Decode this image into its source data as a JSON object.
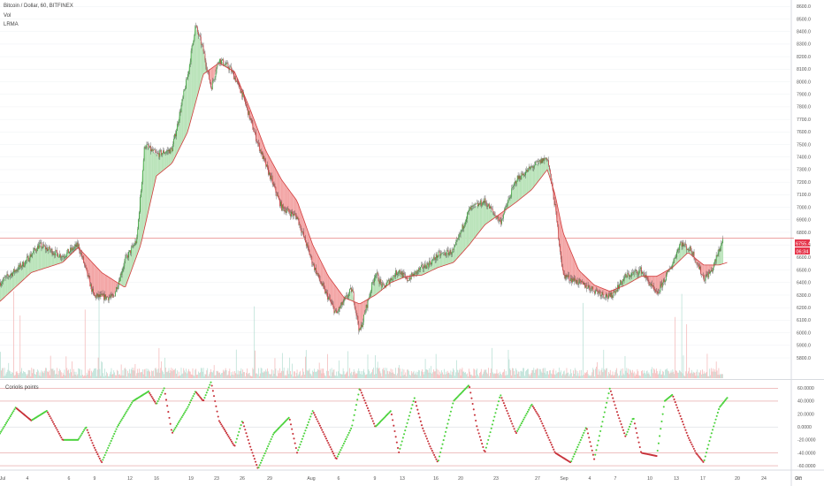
{
  "header": {
    "title": "Bitcoin / Dollar, 60, BITFINEX",
    "indicator_1": "Vol",
    "indicator_2": "LRMA"
  },
  "price_badges": {
    "last": "6755.4",
    "sub": "06:34"
  },
  "colors": {
    "bull": "#2e9e2e",
    "bear": "#c83a3a",
    "fill_bull": "#b9e3b9",
    "fill_bear": "#f3a5a5",
    "ma_line": "#d23c3c",
    "price_line": "#e06a6a",
    "badge_bg": "#e5344a",
    "grid": "#eef0f3",
    "axis_text": "#555555",
    "osc_green": "#4bd23c",
    "osc_red": "#c8323a"
  },
  "chart_data": [
    {
      "type": "candlestick",
      "title": "Bitcoin / Dollar, 60, BITFINEX",
      "indicators": [
        "Vol",
        "LRMA"
      ],
      "ylim": [
        5700,
        8650
      ],
      "y_ticks": [
        "8600.0",
        "8500.0",
        "8400.0",
        "8300.0",
        "8200.0",
        "8100.0",
        "8000.0",
        "7900.0",
        "7800.0",
        "7700.0",
        "7600.0",
        "7500.0",
        "7400.0",
        "7300.0",
        "7200.0",
        "7100.0",
        "7000.0",
        "6900.0",
        "6800.0",
        "6700.0",
        "6600.0",
        "6500.0",
        "6400.0",
        "6300.0",
        "6200.0",
        "6100.0",
        "6000.0",
        "5900.0",
        "5800.0"
      ],
      "x_ticks": [
        "Jul",
        "4",
        "6",
        "9",
        "12",
        "16",
        "19",
        "23",
        "26",
        "29",
        "Aug",
        "6",
        "9",
        "13",
        "16",
        "20",
        "23",
        "27",
        "Sep",
        "4",
        "7",
        "10",
        "13",
        "17",
        "20",
        "24",
        "27",
        "Oct"
      ],
      "last_price": 6755.4,
      "price_path": [
        {
          "t": 0,
          "p": 6400
        },
        {
          "t": 3,
          "p": 6550
        },
        {
          "t": 5,
          "p": 6700
        },
        {
          "t": 8,
          "p": 6610
        },
        {
          "t": 10,
          "p": 6700
        },
        {
          "t": 12,
          "p": 6290
        },
        {
          "t": 14.5,
          "p": 6280
        },
        {
          "t": 16,
          "p": 6580
        },
        {
          "t": 17.5,
          "p": 6740
        },
        {
          "t": 18.5,
          "p": 7500
        },
        {
          "t": 20,
          "p": 7420
        },
        {
          "t": 22,
          "p": 7460
        },
        {
          "t": 24,
          "p": 8050
        },
        {
          "t": 25,
          "p": 8450
        },
        {
          "t": 26,
          "p": 8250
        },
        {
          "t": 27,
          "p": 7950
        },
        {
          "t": 28,
          "p": 8180
        },
        {
          "t": 29.5,
          "p": 8100
        },
        {
          "t": 31,
          "p": 7900
        },
        {
          "t": 33,
          "p": 7500
        },
        {
          "t": 36,
          "p": 7000
        },
        {
          "t": 38,
          "p": 6920
        },
        {
          "t": 40,
          "p": 6550
        },
        {
          "t": 41,
          "p": 6400
        },
        {
          "t": 43,
          "p": 6150
        },
        {
          "t": 45,
          "p": 6350
        },
        {
          "t": 46,
          "p": 6000
        },
        {
          "t": 48,
          "p": 6480
        },
        {
          "t": 49,
          "p": 6360
        },
        {
          "t": 51,
          "p": 6500
        },
        {
          "t": 52,
          "p": 6420
        },
        {
          "t": 54,
          "p": 6520
        },
        {
          "t": 55,
          "p": 6560
        },
        {
          "t": 56,
          "p": 6620
        },
        {
          "t": 58,
          "p": 6650
        },
        {
          "t": 60,
          "p": 6980
        },
        {
          "t": 62,
          "p": 7050
        },
        {
          "t": 64,
          "p": 6880
        },
        {
          "t": 66,
          "p": 7220
        },
        {
          "t": 68,
          "p": 7320
        },
        {
          "t": 70,
          "p": 7400
        },
        {
          "t": 71,
          "p": 7000
        },
        {
          "t": 72,
          "p": 6460
        },
        {
          "t": 74,
          "p": 6400
        },
        {
          "t": 76,
          "p": 6340
        },
        {
          "t": 78,
          "p": 6280
        },
        {
          "t": 80,
          "p": 6450
        },
        {
          "t": 82,
          "p": 6500
        },
        {
          "t": 84,
          "p": 6300
        },
        {
          "t": 86,
          "p": 6550
        },
        {
          "t": 87,
          "p": 6720
        },
        {
          "t": 88.5,
          "p": 6650
        },
        {
          "t": 90,
          "p": 6430
        },
        {
          "t": 91,
          "p": 6490
        },
        {
          "t": 92.5,
          "p": 6755
        }
      ],
      "ma_path": [
        {
          "t": 0,
          "p": 6250
        },
        {
          "t": 4,
          "p": 6480
        },
        {
          "t": 8,
          "p": 6560
        },
        {
          "t": 10,
          "p": 6680
        },
        {
          "t": 13,
          "p": 6480
        },
        {
          "t": 16,
          "p": 6360
        },
        {
          "t": 18,
          "p": 6700
        },
        {
          "t": 20,
          "p": 7250
        },
        {
          "t": 22,
          "p": 7350
        },
        {
          "t": 24,
          "p": 7600
        },
        {
          "t": 26,
          "p": 8060
        },
        {
          "t": 28,
          "p": 8150
        },
        {
          "t": 30,
          "p": 8080
        },
        {
          "t": 32,
          "p": 7780
        },
        {
          "t": 34,
          "p": 7450
        },
        {
          "t": 36,
          "p": 7220
        },
        {
          "t": 38,
          "p": 7050
        },
        {
          "t": 40,
          "p": 6700
        },
        {
          "t": 42,
          "p": 6450
        },
        {
          "t": 44,
          "p": 6280
        },
        {
          "t": 46,
          "p": 6230
        },
        {
          "t": 48,
          "p": 6300
        },
        {
          "t": 50,
          "p": 6400
        },
        {
          "t": 52,
          "p": 6450
        },
        {
          "t": 54,
          "p": 6460
        },
        {
          "t": 56,
          "p": 6520
        },
        {
          "t": 58,
          "p": 6560
        },
        {
          "t": 60,
          "p": 6700
        },
        {
          "t": 62,
          "p": 6860
        },
        {
          "t": 64,
          "p": 6950
        },
        {
          "t": 66,
          "p": 7040
        },
        {
          "t": 68,
          "p": 7140
        },
        {
          "t": 70,
          "p": 7300
        },
        {
          "t": 71,
          "p": 7100
        },
        {
          "t": 72,
          "p": 6800
        },
        {
          "t": 74,
          "p": 6500
        },
        {
          "t": 76,
          "p": 6380
        },
        {
          "t": 78,
          "p": 6330
        },
        {
          "t": 80,
          "p": 6380
        },
        {
          "t": 82,
          "p": 6450
        },
        {
          "t": 84,
          "p": 6450
        },
        {
          "t": 86,
          "p": 6520
        },
        {
          "t": 88,
          "p": 6640
        },
        {
          "t": 90,
          "p": 6540
        },
        {
          "t": 92,
          "p": 6540
        },
        {
          "t": 93,
          "p": 6560
        }
      ]
    },
    {
      "type": "line",
      "title": "Coriolis points",
      "ylim": [
        -75,
        75
      ],
      "y_ticks": [
        "60.0000",
        "40.0000",
        "20.0000",
        "0.0000",
        "-20.0000",
        "-40.0000",
        "-60.0000"
      ],
      "ref_levels": [
        -60,
        -40,
        40,
        60
      ],
      "osc_path": [
        {
          "t": 0,
          "v": -10
        },
        {
          "t": 2,
          "v": 30
        },
        {
          "t": 4,
          "v": 10
        },
        {
          "t": 6,
          "v": 25
        },
        {
          "t": 8,
          "v": -20
        },
        {
          "t": 10,
          "v": -20
        },
        {
          "t": 11,
          "v": 0
        },
        {
          "t": 12,
          "v": -30
        },
        {
          "t": 13,
          "v": -55
        },
        {
          "t": 15,
          "v": 0
        },
        {
          "t": 17,
          "v": 40
        },
        {
          "t": 19,
          "v": 55
        },
        {
          "t": 20,
          "v": 35
        },
        {
          "t": 21,
          "v": 60
        },
        {
          "t": 22,
          "v": -10
        },
        {
          "t": 24,
          "v": 30
        },
        {
          "t": 25,
          "v": 55
        },
        {
          "t": 26,
          "v": 40
        },
        {
          "t": 27,
          "v": 70
        },
        {
          "t": 28,
          "v": 10
        },
        {
          "t": 30,
          "v": -30
        },
        {
          "t": 31,
          "v": 10
        },
        {
          "t": 32,
          "v": -30
        },
        {
          "t": 33,
          "v": -65
        },
        {
          "t": 35,
          "v": -10
        },
        {
          "t": 37,
          "v": 15
        },
        {
          "t": 38,
          "v": -40
        },
        {
          "t": 40,
          "v": 25
        },
        {
          "t": 41,
          "v": 0
        },
        {
          "t": 43,
          "v": -50
        },
        {
          "t": 45,
          "v": 0
        },
        {
          "t": 46,
          "v": 60
        },
        {
          "t": 48,
          "v": 0
        },
        {
          "t": 50,
          "v": 25
        },
        {
          "t": 51,
          "v": -40
        },
        {
          "t": 53,
          "v": 45
        },
        {
          "t": 54,
          "v": 0
        },
        {
          "t": 55,
          "v": -30
        },
        {
          "t": 56,
          "v": -55
        },
        {
          "t": 58,
          "v": 40
        },
        {
          "t": 60,
          "v": 65
        },
        {
          "t": 61,
          "v": 0
        },
        {
          "t": 62,
          "v": -40
        },
        {
          "t": 64,
          "v": 50
        },
        {
          "t": 66,
          "v": -10
        },
        {
          "t": 68,
          "v": 35
        },
        {
          "t": 69,
          "v": 15
        },
        {
          "t": 71,
          "v": -40
        },
        {
          "t": 73,
          "v": -55
        },
        {
          "t": 75,
          "v": 0
        },
        {
          "t": 76,
          "v": -50
        },
        {
          "t": 78,
          "v": 60
        },
        {
          "t": 79,
          "v": 20
        },
        {
          "t": 80,
          "v": -15
        },
        {
          "t": 81,
          "v": 15
        },
        {
          "t": 82,
          "v": -40
        },
        {
          "t": 84,
          "v": -45
        },
        {
          "t": 85,
          "v": 40
        },
        {
          "t": 86,
          "v": 50
        },
        {
          "t": 88,
          "v": -15
        },
        {
          "t": 89,
          "v": -40
        },
        {
          "t": 90,
          "v": -55
        },
        {
          "t": 91,
          "v": -10
        },
        {
          "t": 92,
          "v": 30
        },
        {
          "t": 93,
          "v": 45
        }
      ]
    }
  ]
}
